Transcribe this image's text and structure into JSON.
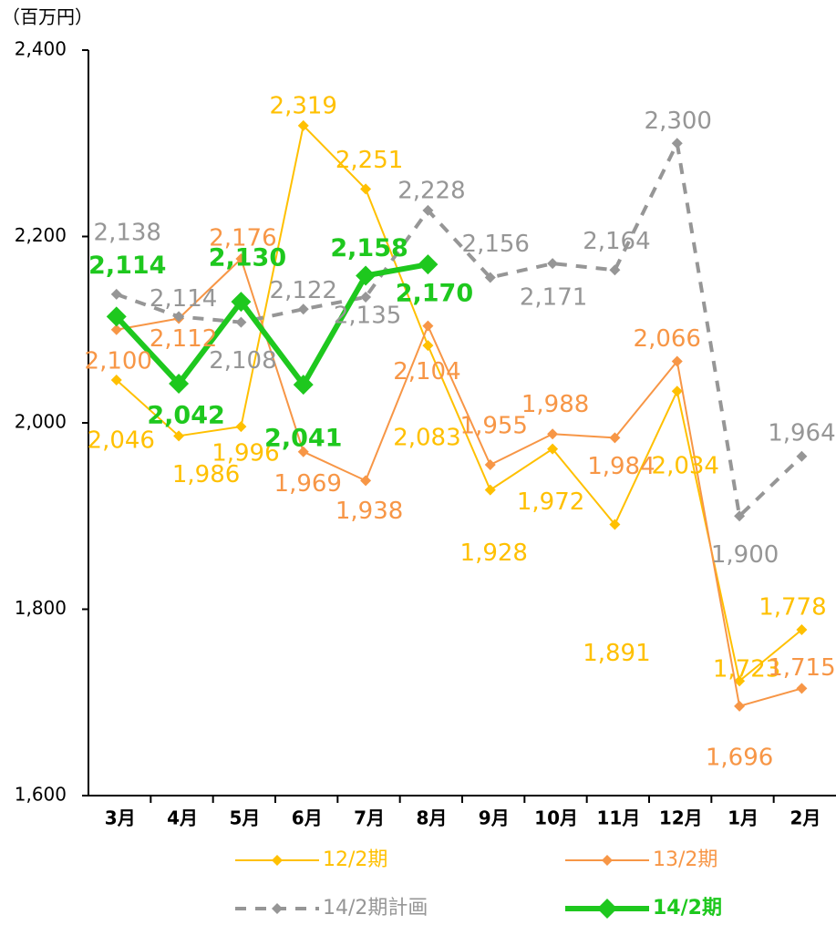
{
  "chart_data": {
    "type": "line",
    "y_unit_label": "（百万円）",
    "categories": [
      "3月",
      "4月",
      "5月",
      "6月",
      "7月",
      "8月",
      "9月",
      "10月",
      "11月",
      "12月",
      "1月",
      "2月"
    ],
    "ylim": [
      1600,
      2400
    ],
    "yticks": [
      {
        "value": 1600,
        "label": "1,600"
      },
      {
        "value": 1800,
        "label": "1,800"
      },
      {
        "value": 2000,
        "label": "2,000"
      },
      {
        "value": 2200,
        "label": "2,200"
      },
      {
        "value": 2400,
        "label": "2,400"
      }
    ],
    "series": [
      {
        "name": "12/2期",
        "color": "#FFC000",
        "style": "solid",
        "values": [
          2046,
          1986,
          1996,
          2319,
          2251,
          2083,
          1928,
          1972,
          1891,
          2034,
          1723,
          1778
        ],
        "value_labels": [
          "2,046",
          "1,986",
          "1,996",
          "2,319",
          "2,251",
          "2,083",
          "1,928",
          "1,972",
          "1,891",
          "2,034",
          "1,723",
          "1,778"
        ]
      },
      {
        "name": "13/2期",
        "color": "#F79646",
        "style": "solid",
        "values": [
          2100,
          2112,
          2176,
          1969,
          1938,
          2104,
          1955,
          1988,
          1984,
          2066,
          1696,
          1715
        ],
        "value_labels": [
          "2,100",
          "2,112",
          "2,176",
          "1,969",
          "1,938",
          "2,104",
          "1,955",
          "1,988",
          "1,984",
          "2,066",
          "1,696",
          "1,715"
        ]
      },
      {
        "name": "14/2期計画",
        "color": "#969696",
        "style": "dashed",
        "values": [
          2138,
          2114,
          2108,
          2122,
          2135,
          2228,
          2156,
          2171,
          2164,
          2300,
          1900,
          1964
        ],
        "value_labels": [
          "2,138",
          "2,114",
          "2,108",
          "2,122",
          "2,135",
          "2,228",
          "2,156",
          "2,171",
          "2,164",
          "2,300",
          "1,900",
          "1,964"
        ]
      },
      {
        "name": "14/2期",
        "color": "#1EC81E",
        "style": "bold",
        "values": [
          2114,
          2042,
          2130,
          2041,
          2158,
          2170,
          null,
          null,
          null,
          null,
          null,
          null
        ],
        "value_labels": [
          "2,114",
          "2,042",
          "2,130",
          "2,041",
          "2,158",
          "2,170",
          null,
          null,
          null,
          null,
          null,
          null
        ]
      }
    ]
  }
}
